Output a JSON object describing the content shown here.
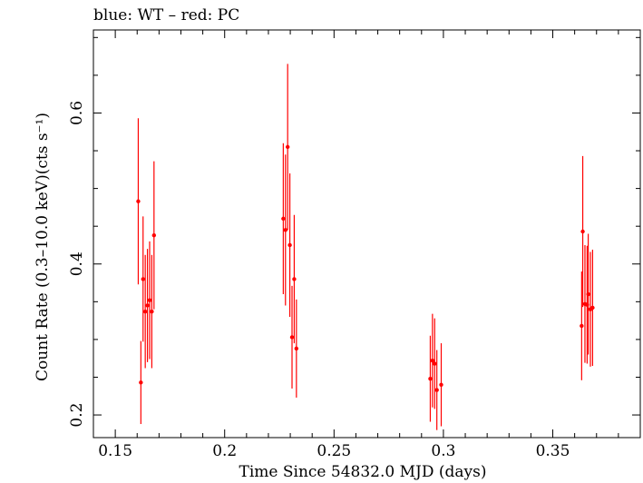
{
  "chart_data": {
    "type": "scatter",
    "title": "blue: WT – red: PC",
    "xlabel": "Time Since 54832.0 MJD (days)",
    "ylabel": "Count Rate (0.3–10.0 keV)(cts s⁻¹)",
    "xlim": [
      0.14,
      0.39
    ],
    "ylim": [
      0.17,
      0.71
    ],
    "x_ticks": [
      0.15,
      0.2,
      0.25,
      0.3,
      0.35
    ],
    "x_tick_labels": [
      "0.15",
      "0.2",
      "0.25",
      "0.3",
      "0.35"
    ],
    "y_ticks": [
      0.2,
      0.4,
      0.6
    ],
    "y_tick_labels": [
      "0.2",
      "0.4",
      "0.6"
    ],
    "grid": false,
    "series": [
      {
        "color": "#ff0000",
        "points": [
          {
            "x": 0.1605,
            "y": 0.483,
            "err": 0.11
          },
          {
            "x": 0.1617,
            "y": 0.243,
            "err": 0.055
          },
          {
            "x": 0.1627,
            "y": 0.38,
            "err": 0.083
          },
          {
            "x": 0.1637,
            "y": 0.337,
            "err": 0.075
          },
          {
            "x": 0.1647,
            "y": 0.345,
            "err": 0.075
          },
          {
            "x": 0.1657,
            "y": 0.352,
            "err": 0.078
          },
          {
            "x": 0.1667,
            "y": 0.337,
            "err": 0.075
          },
          {
            "x": 0.1677,
            "y": 0.438,
            "err": 0.098
          },
          {
            "x": 0.2268,
            "y": 0.46,
            "err": 0.1
          },
          {
            "x": 0.2278,
            "y": 0.445,
            "err": 0.1
          },
          {
            "x": 0.2288,
            "y": 0.555,
            "err": 0.11
          },
          {
            "x": 0.2298,
            "y": 0.425,
            "err": 0.095
          },
          {
            "x": 0.2308,
            "y": 0.303,
            "err": 0.068
          },
          {
            "x": 0.2318,
            "y": 0.38,
            "err": 0.085
          },
          {
            "x": 0.2328,
            "y": 0.288,
            "err": 0.065
          },
          {
            "x": 0.294,
            "y": 0.248,
            "err": 0.057
          },
          {
            "x": 0.295,
            "y": 0.272,
            "err": 0.062
          },
          {
            "x": 0.296,
            "y": 0.268,
            "err": 0.06
          },
          {
            "x": 0.297,
            "y": 0.233,
            "err": 0.053
          },
          {
            "x": 0.299,
            "y": 0.24,
            "err": 0.055
          },
          {
            "x": 0.3632,
            "y": 0.318,
            "err": 0.072
          },
          {
            "x": 0.3637,
            "y": 0.443,
            "err": 0.1
          },
          {
            "x": 0.3647,
            "y": 0.347,
            "err": 0.078
          },
          {
            "x": 0.3657,
            "y": 0.346,
            "err": 0.078
          },
          {
            "x": 0.3662,
            "y": 0.36,
            "err": 0.08
          },
          {
            "x": 0.3672,
            "y": 0.34,
            "err": 0.076
          },
          {
            "x": 0.3682,
            "y": 0.342,
            "err": 0.077
          }
        ]
      }
    ]
  }
}
